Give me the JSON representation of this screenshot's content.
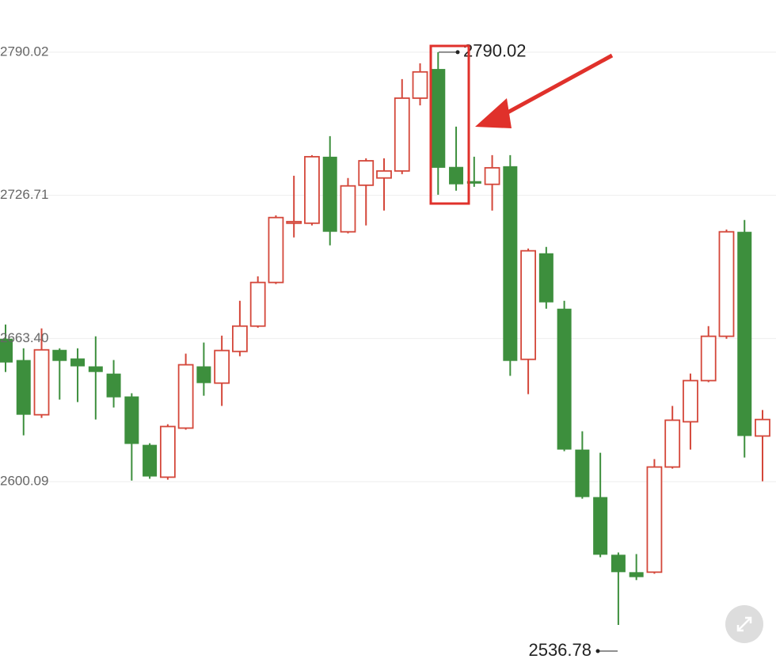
{
  "chart_data": {
    "type": "candlestick",
    "ylim": [
      2521.7,
      2813.1
    ],
    "yticks": [
      2790.02,
      2726.71,
      {
        "value": 2663.4,
        "label": "2663.40"
      },
      2600.09
    ],
    "grid": true,
    "up_color": "#d4473a",
    "down_color": "#3d8f3d",
    "high_annotation": 2790.02,
    "low_annotation": 2536.78,
    "open": [
      2663.3,
      2653.9,
      2629.7,
      2658.4,
      2654.6,
      2651.1,
      2647.9,
      2637.8,
      2616.4,
      2602.1,
      2623.8,
      2651.1,
      2643.7,
      2657.7,
      2668.9,
      2688.2,
      2714.4,
      2714.4,
      2743.8,
      2710.6,
      2731.2,
      2734.4,
      2737.5,
      2769.7,
      2782.6,
      2739.3,
      2733.0,
      2731.6,
      2739.6,
      2654.2,
      2701.1,
      2676.6,
      2614.3,
      2593.3,
      2567.8,
      2560.1,
      2560.1,
      2606.6,
      2626.6,
      2644.8,
      2664.4,
      2710.6,
      2620.3
    ],
    "high": [
      2669.6,
      2659.1,
      2667.9,
      2659.1,
      2659.1,
      2664.4,
      2653.9,
      2639.2,
      2617.1,
      2625.5,
      2656.7,
      2661.6,
      2664.7,
      2680.1,
      2690.9,
      2717.9,
      2735.4,
      2744.5,
      2752.9,
      2734.4,
      2743.1,
      2743.1,
      2778.1,
      2785.1,
      2790.02,
      2757.1,
      2743.8,
      2744.5,
      2744.5,
      2703.2,
      2703.9,
      2680.1,
      2622.4,
      2612.9,
      2568.8,
      2568.1,
      2610.1,
      2633.6,
      2647.9,
      2668.9,
      2711.6,
      2715.8,
      2631.8
    ],
    "low": [
      2648.6,
      2620.6,
      2628.3,
      2636.4,
      2635.3,
      2627.6,
      2632.9,
      2600.6,
      2601.4,
      2601.0,
      2623.1,
      2638.1,
      2633.6,
      2655.6,
      2668.2,
      2687.5,
      2708.1,
      2713.4,
      2704.6,
      2709.9,
      2713.4,
      2720.0,
      2736.1,
      2766.5,
      2727.0,
      2728.8,
      2730.5,
      2720.0,
      2646.9,
      2638.8,
      2676.6,
      2613.6,
      2592.6,
      2566.7,
      2536.78,
      2556.6,
      2559.4,
      2605.9,
      2614.3,
      2644.1,
      2663.3,
      2610.8,
      2600.3
    ],
    "close": [
      2652.8,
      2629.7,
      2658.4,
      2653.5,
      2651.1,
      2648.6,
      2637.4,
      2616.8,
      2602.4,
      2624.5,
      2651.8,
      2643.7,
      2658.1,
      2668.9,
      2688.2,
      2716.9,
      2715.1,
      2743.8,
      2710.6,
      2730.9,
      2742.0,
      2737.5,
      2769.7,
      2781.3,
      2738.9,
      2731.6,
      2731.9,
      2738.9,
      2653.5,
      2702.2,
      2679.4,
      2614.3,
      2593.3,
      2567.8,
      2560.1,
      2557.9,
      2606.6,
      2627.3,
      2644.8,
      2664.4,
      2710.6,
      2620.3,
      2627.6
    ]
  }
}
